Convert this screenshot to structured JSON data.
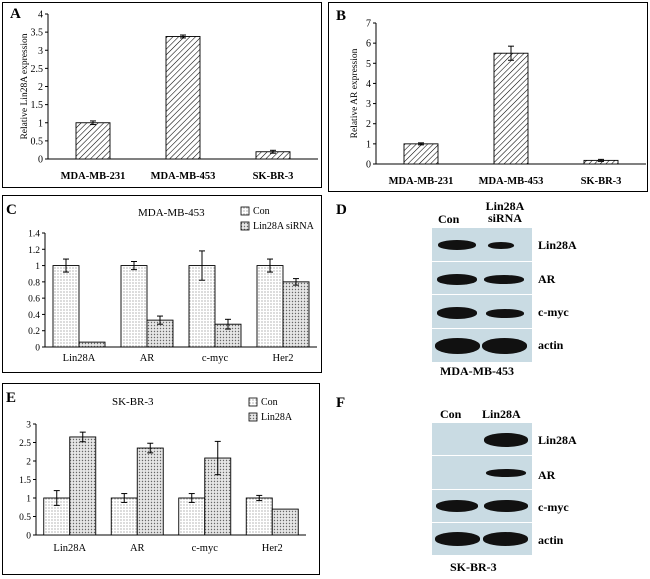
{
  "panels": {
    "A": {
      "letter": "A",
      "chart_data": {
        "type": "bar",
        "ylabel": "Relative Lin28A expression",
        "ylim": [
          0,
          4
        ],
        "yticks": [
          "4",
          "3.5",
          "3",
          "2.5",
          "2",
          "1.5",
          "1",
          "0.5",
          "0"
        ],
        "categories": [
          "MDA-MB-231",
          "MDA-MB-453",
          "SK-BR-3"
        ],
        "values": [
          1.0,
          3.38,
          0.2
        ],
        "errors": [
          0.05,
          0.04,
          0.04
        ]
      }
    },
    "B": {
      "letter": "B",
      "chart_data": {
        "type": "bar",
        "ylabel": "Relative AR expression",
        "ylim": [
          0,
          7
        ],
        "yticks": [
          "7",
          "6",
          "5",
          "4",
          "3",
          "2",
          "1",
          "0"
        ],
        "categories": [
          "MDA-MB-231",
          "MDA-MB-453",
          "SK-BR-3"
        ],
        "values": [
          1.0,
          5.5,
          0.18
        ],
        "errors": [
          0.05,
          0.35,
          0.05
        ]
      }
    },
    "C": {
      "letter": "C",
      "chart_data": {
        "type": "bar",
        "title": "MDA-MB-453",
        "ylim": [
          0,
          1.4
        ],
        "yticks": [
          "1.4",
          "1.2",
          "1",
          "0.8",
          "0.6",
          "0.4",
          "0.2",
          "0"
        ],
        "categories": [
          "Lin28A",
          "AR",
          "c-myc",
          "Her2"
        ],
        "series": [
          {
            "name": "Con",
            "values": [
              1.0,
              1.0,
              1.0,
              1.0
            ],
            "errors": [
              0.08,
              0.05,
              0.18,
              0.08
            ]
          },
          {
            "name": "Lin28A siRNA",
            "values": [
              0.06,
              0.33,
              0.28,
              0.8
            ],
            "errors": [
              0.0,
              0.05,
              0.06,
              0.04
            ]
          }
        ]
      }
    },
    "D": {
      "letter": "D",
      "col_con": "Con",
      "col_treat": "Lin28A siRNA",
      "rows": [
        "Lin28A",
        "AR",
        "c-myc",
        "actin"
      ],
      "cell_line": "MDA-MB-453"
    },
    "E": {
      "letter": "E",
      "chart_data": {
        "type": "bar",
        "title": "SK-BR-3",
        "ylim": [
          0,
          3
        ],
        "yticks": [
          "3",
          "2.5",
          "2",
          "1.5",
          "1",
          "0.5",
          "0"
        ],
        "categories": [
          "Lin28A",
          "AR",
          "c-myc",
          "Her2"
        ],
        "series": [
          {
            "name": "Con",
            "values": [
              1.0,
              1.0,
              1.0,
              1.0
            ],
            "errors": [
              0.2,
              0.12,
              0.12,
              0.07
            ]
          },
          {
            "name": "Lin28A",
            "values": [
              2.65,
              2.35,
              2.08,
              0.7
            ],
            "errors": [
              0.13,
              0.13,
              0.45,
              0.0
            ]
          }
        ]
      }
    },
    "F": {
      "letter": "F",
      "col_con": "Con",
      "col_treat": "Lin28A",
      "rows": [
        "Lin28A",
        "AR",
        "c-myc",
        "actin"
      ],
      "cell_line": "SK-BR-3"
    }
  }
}
